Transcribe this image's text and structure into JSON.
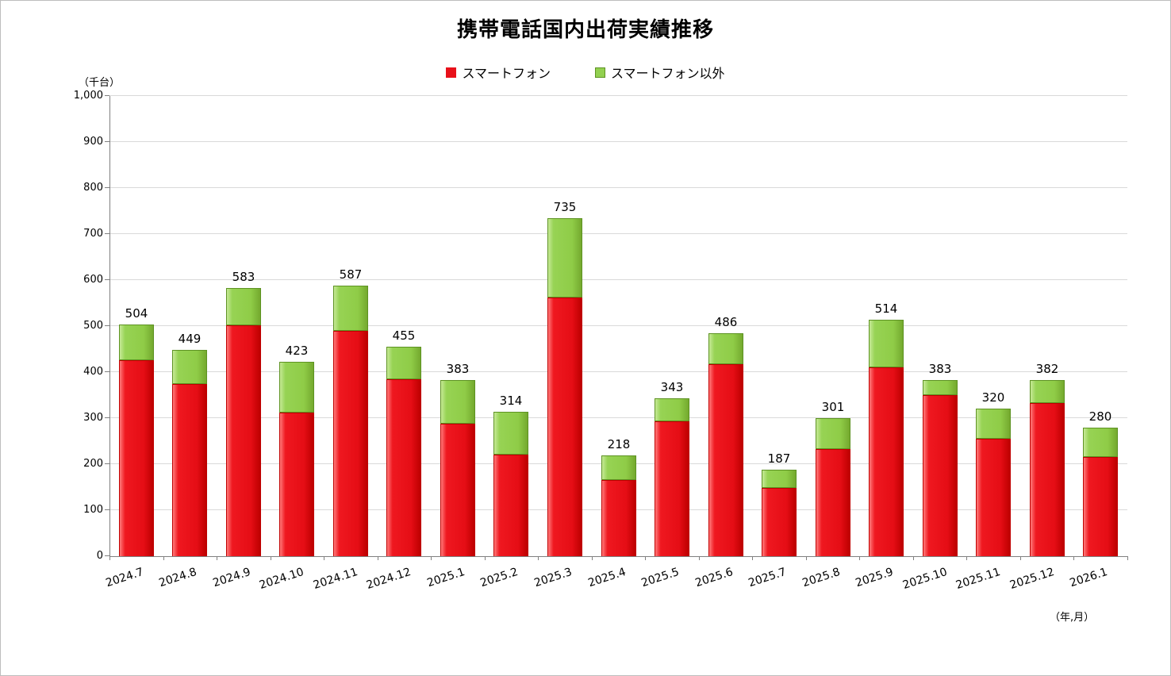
{
  "chart_data": {
    "type": "bar",
    "subtype": "stacked-column",
    "title": "携帯電話国内出荷実績推移",
    "unit_label": "（千台）",
    "x_axis_label": "（年,月）",
    "grid": true,
    "legend_position": "top",
    "ylim": [
      0,
      1000
    ],
    "ytick_step": 100,
    "ytick_labels": [
      "0",
      "100",
      "200",
      "300",
      "400",
      "500",
      "600",
      "700",
      "800",
      "900",
      "1,000"
    ],
    "categories": [
      "2024.7",
      "2024.8",
      "2024.9",
      "2024.10",
      "2024.11",
      "2024.12",
      "2025.1",
      "2025.2",
      "2025.3",
      "2025.4",
      "2025.5",
      "2025.6",
      "2025.7",
      "2025.8",
      "2025.9",
      "2025.10",
      "2025.11",
      "2025.12",
      "2026.1"
    ],
    "series": [
      {
        "name": "スマートフォン",
        "color": "#e8111a",
        "values": [
          426,
          375,
          502,
          312,
          489,
          385,
          288,
          221,
          562,
          165,
          293,
          418,
          148,
          233,
          410,
          350,
          255,
          332,
          216
        ]
      },
      {
        "name": "スマートフォン以外",
        "color": "#92d050",
        "values": [
          78,
          74,
          81,
          111,
          98,
          70,
          95,
          93,
          173,
          53,
          50,
          68,
          39,
          68,
          104,
          33,
          65,
          50,
          64
        ]
      }
    ],
    "totals": [
      504,
      449,
      583,
      423,
      587,
      455,
      383,
      314,
      735,
      218,
      343,
      486,
      187,
      301,
      514,
      383,
      320,
      382,
      280
    ]
  }
}
